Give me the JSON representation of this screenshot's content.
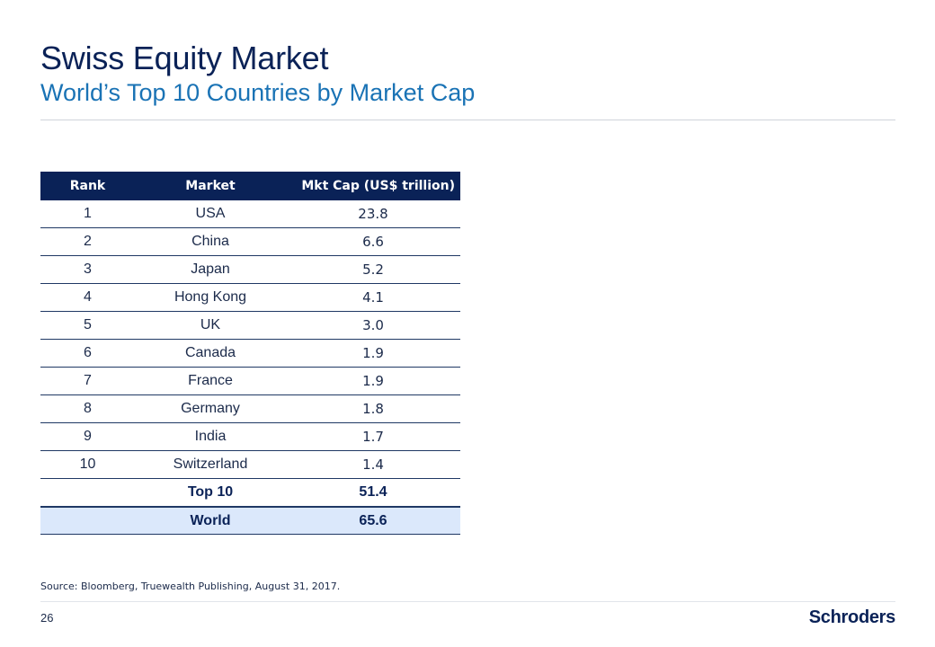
{
  "header": {
    "title": "Swiss Equity Market",
    "subtitle": "World’s Top 10 Countries by Market Cap"
  },
  "table": {
    "columns": [
      "Rank",
      "Market",
      "Mkt Cap (US$ trillion)"
    ],
    "rows": [
      {
        "rank": "1",
        "market": "USA",
        "cap": "23.8"
      },
      {
        "rank": "2",
        "market": "China",
        "cap": "6.6"
      },
      {
        "rank": "3",
        "market": "Japan",
        "cap": "5.2"
      },
      {
        "rank": "4",
        "market": "Hong Kong",
        "cap": "4.1"
      },
      {
        "rank": "5",
        "market": "UK",
        "cap": "3.0"
      },
      {
        "rank": "6",
        "market": "Canada",
        "cap": "1.9"
      },
      {
        "rank": "7",
        "market": "France",
        "cap": "1.9"
      },
      {
        "rank": "8",
        "market": "Germany",
        "cap": "1.8"
      },
      {
        "rank": "9",
        "market": "India",
        "cap": "1.7"
      },
      {
        "rank": "10",
        "market": "Switzerland",
        "cap": "1.4"
      }
    ],
    "total": {
      "label": "Top 10",
      "cap": "51.4"
    },
    "world": {
      "label": "World",
      "cap": "65.6"
    }
  },
  "footer": {
    "source": "Source: Bloomberg, Truewealth Publishing, August 31, 2017.",
    "page_number": "26",
    "logo_text": "Schroders"
  },
  "colors": {
    "title": "#0a2257",
    "subtitle": "#1a73b5",
    "table_header": "#0a2257",
    "world_row": "#dbe8fb"
  }
}
